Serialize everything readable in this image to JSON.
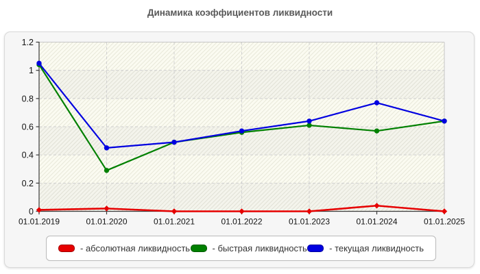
{
  "page": {
    "title": "Динамика коэффициентов ликвидности"
  },
  "chart_data": {
    "type": "line",
    "title": "Динамика коэффициентов ликвидности",
    "x": [
      "01.01.2019",
      "01.01.2020",
      "01.01.2021",
      "01.01.2022",
      "01.01.2023",
      "01.01.2024",
      "01.01.2025"
    ],
    "series": [
      {
        "name": "абсолютная ликвидность",
        "legend_label": "- абсолютная ликвидность",
        "color": "#e60000",
        "marker": "diamond",
        "values": [
          0.01,
          0.02,
          0.0,
          0.0,
          0.0,
          0.04,
          0.0
        ]
      },
      {
        "name": "быстрая ликвидность",
        "legend_label": "- быстрая ликвидность",
        "color": "#008000",
        "marker": "circle",
        "values": [
          1.04,
          0.29,
          0.49,
          0.56,
          0.61,
          0.57,
          0.64
        ]
      },
      {
        "name": "текущая ликвидность",
        "legend_label": "- текущая ликвидность",
        "color": "#0000e0",
        "marker": "circle",
        "values": [
          1.05,
          0.45,
          0.49,
          0.57,
          0.64,
          0.77,
          0.64
        ]
      }
    ],
    "xlabel": "",
    "ylabel": "",
    "ylim": [
      0,
      1.2
    ],
    "yticks": [
      0,
      0.2,
      0.4,
      0.6,
      0.8,
      1,
      1.2
    ],
    "ytick_labels": [
      "0",
      "0.2",
      "0.4",
      "0.6",
      "0.8",
      "1",
      "1.2"
    ],
    "grid": "dashed",
    "legend_position": "bottom",
    "plot_bg": "#fbfbf1",
    "hatch_line_color": "#e8e8da",
    "band_color": "rgba(90,100,150,0.045)",
    "grid_color": "#cfcfcf",
    "axis_color": "#3a3a3a",
    "frame_color": "#c6c6c6",
    "tick_label_color": "#111111"
  }
}
